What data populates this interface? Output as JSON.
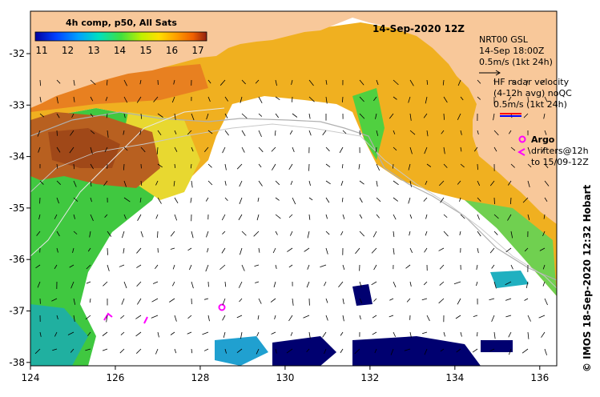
{
  "map": {
    "date_title": "14-Sep-2020 12Z",
    "sst_label": "4h comp, p50, All Sats",
    "colorbar": {
      "ticks": [
        "11",
        "12",
        "13",
        "14",
        "15",
        "16",
        "17"
      ],
      "colors": [
        "#0000a0",
        "#0040ff",
        "#00a0ff",
        "#00e0c0",
        "#40e040",
        "#c0f000",
        "#ffe000",
        "#ffa000",
        "#f06000",
        "#c03000",
        "#902010"
      ]
    },
    "wind_legend": {
      "lines": [
        "NRT00 GSL",
        "14-Sep 18:00Z",
        "0.5m/s (1kt 24h)"
      ]
    },
    "radar_legend": {
      "lines": [
        "HF radar velocity",
        "(4-12h avg) noQC",
        "0.5m/s (1kt 24h)"
      ]
    },
    "argo_legend": {
      "title": "Argo",
      "lines": [
        "drifters@12h",
        "to 15/09-12Z"
      ]
    },
    "credit": "© IMOS 18-Sep-2020 12:32 Hobart",
    "x_ticks": [
      "124",
      "126",
      "128",
      "130",
      "132",
      "134",
      "136"
    ],
    "y_ticks": [
      "-32",
      "-33",
      "-34",
      "-35",
      "-36",
      "-37",
      "-38"
    ],
    "land_color": "#f8c89a"
  }
}
